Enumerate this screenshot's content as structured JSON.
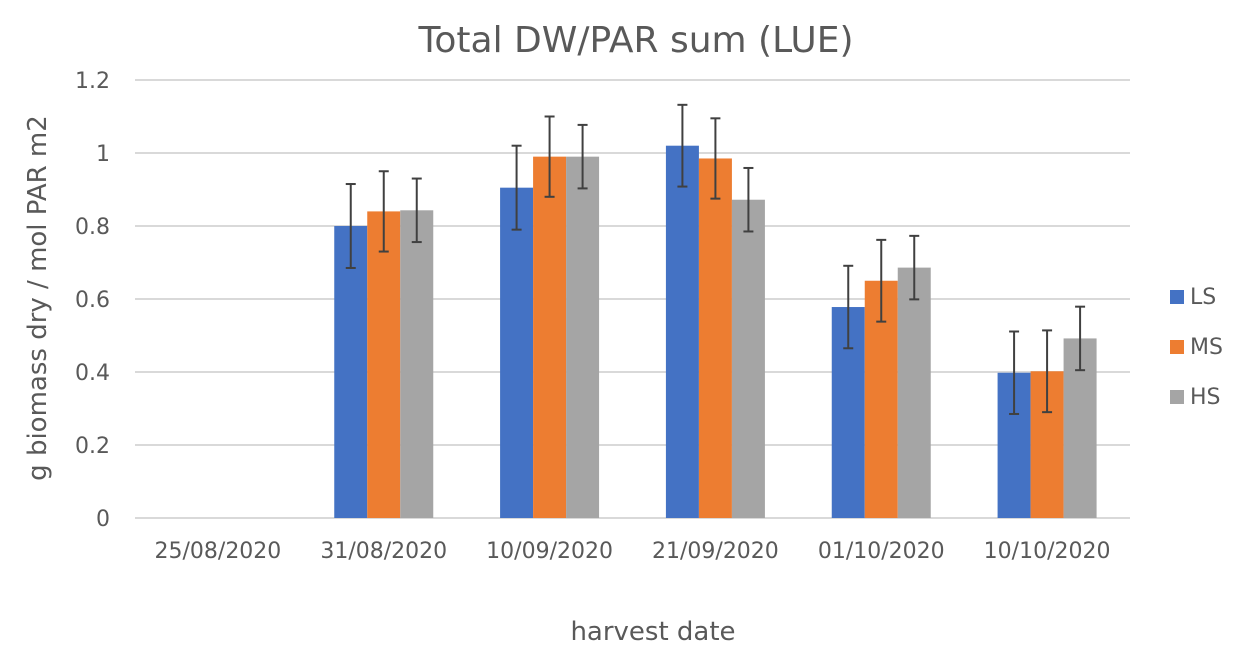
{
  "chart_data": {
    "type": "bar",
    "title": "Total DW/PAR sum (LUE)",
    "xlabel": "harvest date",
    "ylabel": "g biomass dry / mol PAR m2",
    "ylim": [
      0,
      1.2
    ],
    "yticks": [
      "0",
      "0.2",
      "0.4",
      "0.6",
      "0.8",
      "1",
      "1.2"
    ],
    "grid": true,
    "legend_position": "right",
    "categories": [
      "25/08/2020",
      "31/08/2020",
      "10/09/2020",
      "21/09/2020",
      "01/10/2020",
      "10/10/2020"
    ],
    "series": [
      {
        "name": "LS",
        "color": "#4472c4",
        "values": [
          null,
          0.8,
          0.905,
          1.02,
          0.578,
          0.398
        ],
        "errors": [
          null,
          0.115,
          0.115,
          0.112,
          0.113,
          0.113
        ]
      },
      {
        "name": "MS",
        "color": "#ed7d31",
        "values": [
          null,
          0.84,
          0.99,
          0.985,
          0.65,
          0.402
        ],
        "errors": [
          null,
          0.11,
          0.11,
          0.11,
          0.112,
          0.112
        ]
      },
      {
        "name": "HS",
        "color": "#a5a5a5",
        "values": [
          null,
          0.843,
          0.99,
          0.872,
          0.686,
          0.492
        ],
        "errors": [
          null,
          0.087,
          0.087,
          0.087,
          0.087,
          0.087
        ]
      }
    ]
  }
}
